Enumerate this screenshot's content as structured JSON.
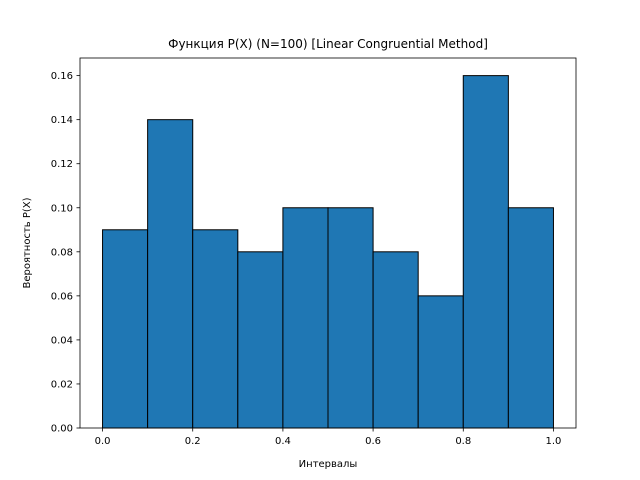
{
  "chart_data": {
    "type": "bar",
    "title": "Функция P(X) (N=100) [Linear Congruential Method]",
    "xlabel": "Интервалы",
    "ylabel": "Вероятность P(X)",
    "bins": [
      {
        "x0": 0.0,
        "x1": 0.1,
        "value": 0.09
      },
      {
        "x0": 0.1,
        "x1": 0.2,
        "value": 0.14
      },
      {
        "x0": 0.2,
        "x1": 0.3,
        "value": 0.09
      },
      {
        "x0": 0.3,
        "x1": 0.4,
        "value": 0.08
      },
      {
        "x0": 0.4,
        "x1": 0.5,
        "value": 0.1
      },
      {
        "x0": 0.5,
        "x1": 0.6,
        "value": 0.1
      },
      {
        "x0": 0.6,
        "x1": 0.7,
        "value": 0.08
      },
      {
        "x0": 0.7,
        "x1": 0.8,
        "value": 0.06
      },
      {
        "x0": 0.8,
        "x1": 0.9,
        "value": 0.16
      },
      {
        "x0": 0.9,
        "x1": 1.0,
        "value": 0.1
      }
    ],
    "xlim": [
      -0.05,
      1.05
    ],
    "ylim": [
      0,
      0.168
    ],
    "xticks": [
      0.0,
      0.2,
      0.4,
      0.6,
      0.8,
      1.0
    ],
    "xtick_labels": [
      "0.0",
      "0.2",
      "0.4",
      "0.6",
      "0.8",
      "1.0"
    ],
    "yticks": [
      0.0,
      0.02,
      0.04,
      0.06,
      0.08,
      0.1,
      0.12,
      0.14,
      0.16
    ],
    "ytick_labels": [
      "0.00",
      "0.02",
      "0.04",
      "0.06",
      "0.08",
      "0.10",
      "0.12",
      "0.14",
      "0.16"
    ],
    "grid": false,
    "bar_color": "#1f77b4",
    "edge_color": "#000000"
  }
}
